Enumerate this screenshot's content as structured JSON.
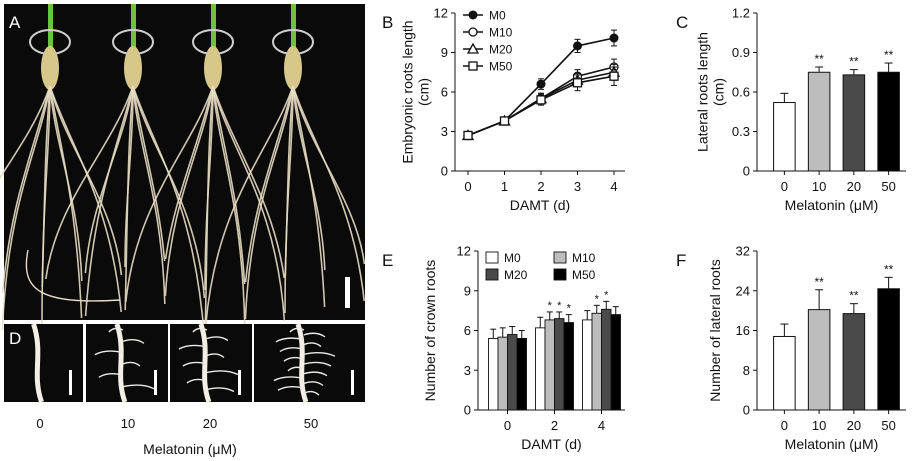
{
  "panel_letters": {
    "A": "A",
    "B": "B",
    "C": "C",
    "D": "D",
    "E": "E",
    "F": "F"
  },
  "photo_labels": {
    "d_ticks": [
      "0",
      "10",
      "20",
      "50"
    ],
    "d_xlabel": "Melatonin (μM)"
  },
  "colors": {
    "photo_bg": "#0a0a0a",
    "root": "#e7dcc2",
    "seed": "#d8c78a",
    "stem": "#6cc43c",
    "white": "#ffffff",
    "light_gray": "#bdbdbd",
    "dark_gray": "#4a4a4a",
    "black": "#000000"
  },
  "chart_data": [
    {
      "id": "B",
      "type": "line",
      "xlabel": "DAMT (d)",
      "ylabel": "Embryonic roots length\n(cm)",
      "x": [
        0,
        1,
        2,
        3,
        4
      ],
      "xlim": [
        0,
        4
      ],
      "ylim": [
        0,
        12
      ],
      "yticks": [
        "0",
        "3",
        "6",
        "9",
        "12"
      ],
      "xticks": [
        "0",
        "1",
        "2",
        "3",
        "4"
      ],
      "legend_position": "top-left",
      "series": [
        {
          "name": "M0",
          "marker": "filled-circle",
          "values": [
            2.7,
            3.8,
            6.6,
            9.5,
            10.1
          ],
          "errors": [
            0.1,
            0.2,
            0.4,
            0.5,
            0.6
          ]
        },
        {
          "name": "M10",
          "marker": "open-circle",
          "values": [
            2.7,
            3.8,
            5.5,
            7.2,
            7.9
          ],
          "errors": [
            0.1,
            0.2,
            0.4,
            0.5,
            0.6
          ]
        },
        {
          "name": "M20",
          "marker": "open-triangle",
          "values": [
            2.7,
            3.8,
            5.5,
            6.9,
            7.5
          ],
          "errors": [
            0.1,
            0.2,
            0.4,
            0.5,
            0.6
          ]
        },
        {
          "name": "M50",
          "marker": "open-square",
          "values": [
            2.7,
            3.8,
            5.4,
            6.7,
            7.2
          ],
          "errors": [
            0.1,
            0.2,
            0.4,
            0.6,
            0.7
          ]
        }
      ]
    },
    {
      "id": "C",
      "type": "bar",
      "xlabel": "Melatonin (μM)",
      "ylabel": "Lateral roots length\n(cm)",
      "categories": [
        "0",
        "10",
        "20",
        "50"
      ],
      "values": [
        0.52,
        0.75,
        0.73,
        0.75
      ],
      "errors": [
        0.07,
        0.04,
        0.04,
        0.07
      ],
      "significance": [
        "",
        "**",
        "**",
        "**"
      ],
      "ylim": [
        0,
        1.2
      ],
      "yticks": [
        "0",
        "0.3",
        "0.6",
        "0.9",
        "1.2"
      ]
    },
    {
      "id": "E",
      "type": "bar",
      "xlabel": "DAMT (d)",
      "ylabel": "Number of crown roots",
      "categories": [
        "0",
        "2",
        "4"
      ],
      "ylim": [
        0,
        12
      ],
      "yticks": [
        "0",
        "3",
        "6",
        "9",
        "12"
      ],
      "legend_position": "top",
      "series": [
        {
          "name": "M0",
          "values": [
            5.4,
            6.2,
            6.8
          ],
          "errors": [
            0.7,
            0.8,
            0.7
          ],
          "significance": [
            "",
            "",
            ""
          ]
        },
        {
          "name": "M10",
          "values": [
            5.5,
            6.8,
            7.3
          ],
          "errors": [
            0.7,
            0.6,
            0.6
          ],
          "significance": [
            "",
            "*",
            "*"
          ]
        },
        {
          "name": "M20",
          "values": [
            5.7,
            6.9,
            7.6
          ],
          "errors": [
            0.6,
            0.5,
            0.6
          ],
          "significance": [
            "",
            "*",
            "*"
          ]
        },
        {
          "name": "M50",
          "values": [
            5.4,
            6.6,
            7.2
          ],
          "errors": [
            0.6,
            0.6,
            0.6
          ],
          "significance": [
            "",
            "*",
            ""
          ]
        }
      ]
    },
    {
      "id": "F",
      "type": "bar",
      "xlabel": "Melatonin (μM)",
      "ylabel": "Number of lateral roots",
      "categories": [
        "0",
        "10",
        "20",
        "50"
      ],
      "values": [
        14.8,
        20.2,
        19.4,
        24.4
      ],
      "errors": [
        2.5,
        4.0,
        2.0,
        2.3
      ],
      "significance": [
        "",
        "**",
        "**",
        "**"
      ],
      "ylim": [
        0,
        32
      ],
      "yticks": [
        "0",
        "8",
        "16",
        "24",
        "32"
      ]
    }
  ]
}
